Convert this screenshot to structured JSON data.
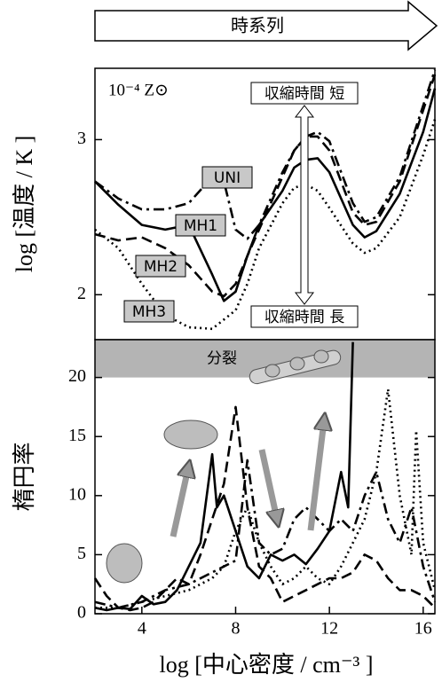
{
  "header": {
    "label": "時系列"
  },
  "chart_data": [
    {
      "type": "line",
      "ylabel": "log [温度 / K ]",
      "metallicity": "10⁻⁴ Z⊙",
      "short_label": "収縮時間 短",
      "long_label": "収縮時間 長",
      "xlim": [
        2,
        16.5
      ],
      "ylim": [
        1.71,
        3.46
      ],
      "yticks": [
        2,
        3
      ],
      "x": [
        2,
        3,
        4,
        5,
        6,
        7,
        7.5,
        8,
        8.5,
        9,
        10,
        10.5,
        11,
        11.5,
        12,
        13,
        13.5,
        14,
        15,
        16,
        16.5
      ],
      "series": [
        {
          "name": "UNI",
          "color": "#000000",
          "dash": "dashdot",
          "values": [
            2.73,
            2.62,
            2.55,
            2.55,
            2.59,
            2.76,
            2.73,
            2.42,
            2.36,
            2.45,
            2.79,
            2.93,
            3.02,
            3.05,
            2.99,
            2.59,
            2.47,
            2.5,
            2.76,
            3.22,
            3.45
          ]
        },
        {
          "name": "MH1",
          "color": "#000000",
          "dash": "solid",
          "values": [
            2.73,
            2.58,
            2.45,
            2.42,
            2.45,
            2.13,
            1.96,
            2.02,
            2.25,
            2.45,
            2.67,
            2.82,
            2.87,
            2.88,
            2.79,
            2.45,
            2.37,
            2.41,
            2.65,
            3.05,
            3.33
          ]
        },
        {
          "name": "MH2",
          "color": "#000000",
          "dash": "dashed",
          "values": [
            2.39,
            2.35,
            2.37,
            2.3,
            2.19,
            2.02,
            1.99,
            2.07,
            2.25,
            2.42,
            2.76,
            2.93,
            3.02,
            3.02,
            2.93,
            2.53,
            2.45,
            2.47,
            2.73,
            3.19,
            3.42
          ]
        },
        {
          "name": "MH3",
          "color": "#000000",
          "dash": "dotted",
          "values": [
            2.42,
            2.3,
            2.07,
            1.87,
            1.79,
            1.78,
            1.84,
            1.9,
            2.07,
            2.3,
            2.59,
            2.69,
            2.71,
            2.67,
            2.56,
            2.33,
            2.27,
            2.3,
            2.5,
            2.9,
            3.13
          ]
        }
      ]
    },
    {
      "type": "line",
      "ylabel": "楕円率",
      "xlabel": "log [中心密度 / cm⁻³ ]",
      "xlim": [
        2,
        16.5
      ],
      "xticks": [
        4,
        8,
        12,
        16
      ],
      "ylim": [
        0,
        23.2
      ],
      "yticks": [
        0,
        5,
        10,
        15,
        20
      ],
      "band": {
        "range": [
          20,
          23.2
        ],
        "label": "分裂",
        "color": "#b4b4b4"
      },
      "series": [
        {
          "color": "#000000",
          "dash": "dashdot",
          "x": [
            2,
            3,
            4,
            5,
            6,
            7,
            7.5,
            8,
            8.5,
            9,
            9.5,
            10,
            10.5,
            11,
            11.5,
            12,
            12.5,
            13,
            13.5,
            14,
            14.5,
            15,
            15.5,
            16,
            16.5
          ],
          "values": [
            1,
            0.5,
            1,
            2,
            2.5,
            3.5,
            4,
            4.5,
            13,
            6,
            5,
            5.5,
            8,
            9,
            8,
            7,
            8,
            7,
            10,
            12,
            8,
            6,
            9,
            4,
            1
          ]
        },
        {
          "color": "#000000",
          "dash": "solid",
          "x": [
            2,
            2.5,
            3,
            3.5,
            4,
            4.5,
            5,
            5.5,
            6,
            6.5,
            7,
            7.2,
            7.5,
            8,
            8.5,
            9,
            9.5,
            10,
            10.5,
            11,
            11.5,
            12,
            12.5,
            12.8,
            13
          ],
          "values": [
            0.5,
            0.3,
            0.5,
            0.4,
            1.5,
            0.8,
            1,
            2,
            4,
            6,
            13.5,
            9,
            10,
            7,
            4,
            3,
            5,
            4.5,
            5,
            4.2,
            5.5,
            7,
            12,
            9,
            23
          ]
        },
        {
          "color": "#000000",
          "dash": "dashed",
          "x": [
            2,
            2.5,
            3,
            3.5,
            4,
            4.5,
            5,
            5.5,
            6,
            6.5,
            7,
            7.5,
            8,
            8.5,
            9,
            9.5,
            10,
            10.5,
            11,
            11.5,
            12,
            12.5,
            13,
            13.5,
            14,
            14.5,
            15,
            15.5,
            16,
            16.5
          ],
          "values": [
            3,
            1.5,
            0.5,
            0.3,
            0.5,
            1,
            2,
            3,
            2.5,
            5,
            8,
            11,
            17.5,
            9,
            4,
            3,
            1,
            1.5,
            2,
            2.5,
            3,
            3,
            3.5,
            5,
            4.5,
            3,
            2,
            2,
            1.5,
            0.5
          ]
        },
        {
          "color": "#000000",
          "dash": "dotted",
          "x": [
            2,
            3,
            4,
            5,
            6,
            7,
            7.5,
            8,
            8.5,
            9,
            9.5,
            10,
            10.5,
            11,
            11.5,
            12,
            12.5,
            13,
            13.5,
            14,
            14.5,
            15,
            15.5,
            15.7,
            16,
            16.5
          ],
          "values": [
            0.5,
            0.5,
            1,
            1.5,
            2,
            3,
            4,
            7,
            9,
            6,
            4,
            2.5,
            3,
            4,
            3,
            2.5,
            4,
            6,
            8,
            12,
            19,
            10,
            5,
            15.5,
            6,
            2
          ]
        }
      ]
    }
  ]
}
